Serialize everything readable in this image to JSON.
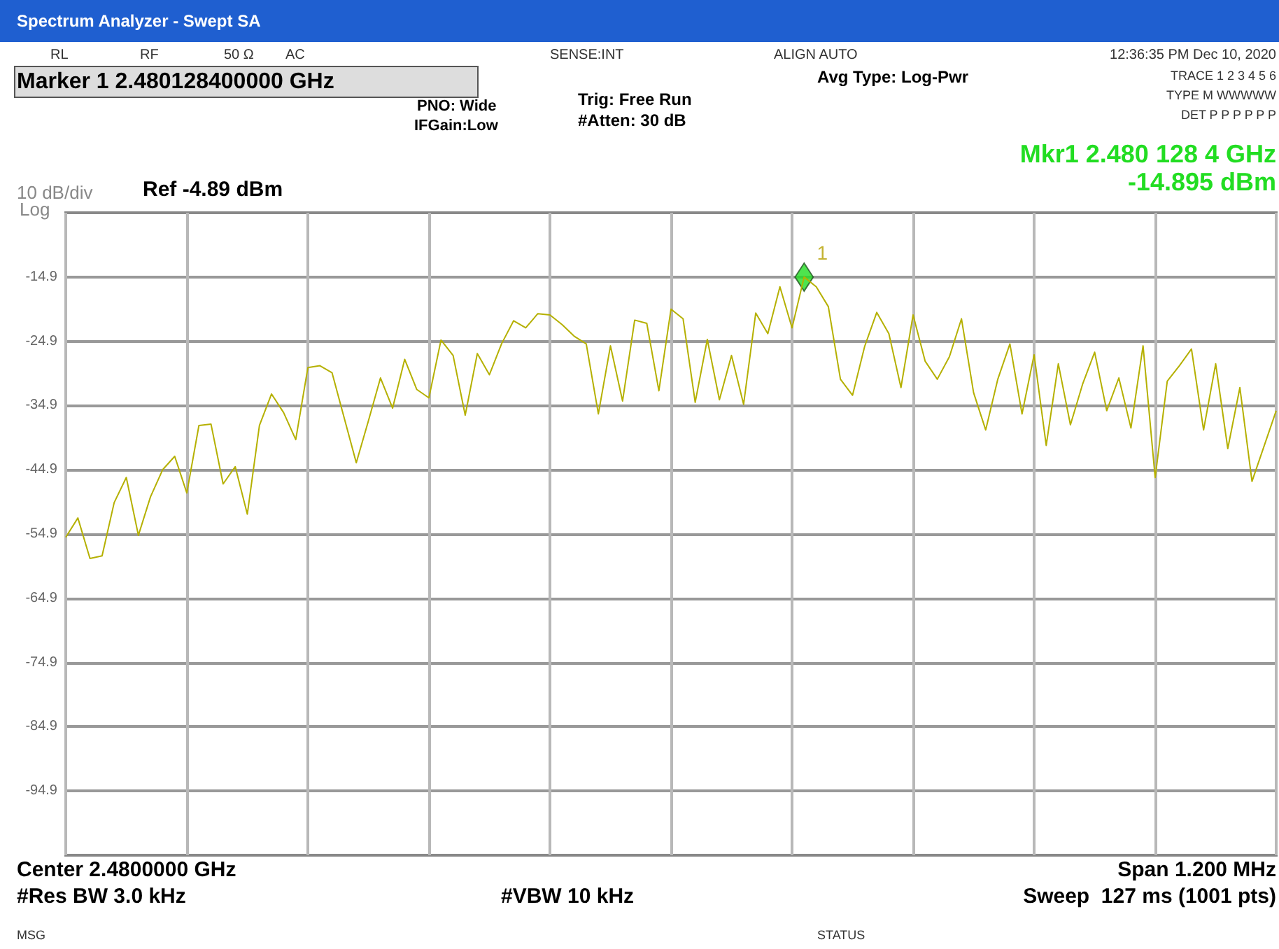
{
  "chart_data": {
    "type": "line",
    "title": "Spectrum Analyzer - Swept SA",
    "categories": [
      null,
      null,
      null,
      null,
      null,
      null,
      null,
      null,
      null,
      null,
      null,
      null,
      null,
      null,
      null,
      null,
      null,
      null,
      null,
      null,
      null,
      null,
      null,
      null,
      null,
      null,
      null,
      null,
      null,
      null,
      null,
      null,
      null,
      null,
      null,
      null,
      null,
      null,
      null,
      null,
      null,
      null,
      null,
      null,
      null,
      null,
      null,
      null,
      null,
      null,
      null,
      null,
      null,
      null,
      null,
      null,
      null,
      null,
      null,
      null,
      null,
      null,
      null,
      null,
      null,
      null,
      null,
      null,
      null,
      null,
      null,
      null,
      null,
      null,
      null,
      null,
      null,
      null,
      null,
      null,
      null,
      null,
      null,
      null,
      null,
      null,
      null,
      null,
      null,
      null,
      null,
      null,
      null,
      null,
      null,
      null,
      null,
      null,
      null,
      null,
      null
    ],
    "series": [
      {
        "color": "#b5b000",
        "values": [
          -55.4,
          -52.4,
          -58.7,
          -58.3,
          -50.0,
          -46.1,
          -55.1,
          -49.1,
          -44.9,
          -42.8,
          -48.5,
          -38.0,
          -37.8,
          -47.1,
          -44.4,
          -51.8,
          -38.0,
          -33.1,
          -36.0,
          -40.2,
          -29.0,
          -28.7,
          -29.8,
          -36.8,
          -43.8,
          -37.3,
          -30.6,
          -35.3,
          -27.7,
          -32.4,
          -33.7,
          -24.7,
          -27.1,
          -36.4,
          -26.8,
          -30.1,
          -25.3,
          -21.7,
          -22.8,
          -20.6,
          -20.8,
          -22.3,
          -24.1,
          -25.3,
          -36.2,
          -25.6,
          -34.2,
          -21.6,
          -22.1,
          -32.6,
          -19.9,
          -21.4,
          -34.4,
          -24.6,
          -34.0,
          -27.1,
          -34.7,
          -20.5,
          -23.7,
          -16.4,
          -22.8,
          -14.9,
          -16.4,
          -19.5,
          -30.8,
          -33.3,
          -25.7,
          -20.4,
          -23.7,
          -32.1,
          -20.8,
          -28.0,
          -30.8,
          -27.3,
          -21.4,
          -32.9,
          -38.7,
          -30.8,
          -25.3,
          -36.2,
          -27.0,
          -41.1,
          -28.4,
          -37.9,
          -31.6,
          -26.6,
          -35.7,
          -30.6,
          -38.4,
          -25.6,
          -46.1,
          -31.1,
          -28.7,
          -26.1,
          -38.7,
          -28.4,
          -41.6,
          -32.1,
          -46.7,
          -41.2,
          -35.7
        ]
      },
      {
        "type": "scatter",
        "name": "1",
        "color": "#22dd22",
        "marker": "diamond",
        "values": [
          null,
          null,
          null,
          null,
          null,
          null,
          null,
          null,
          null,
          null,
          null,
          null,
          null,
          null,
          null,
          null,
          null,
          null,
          null,
          null,
          null,
          null,
          null,
          null,
          null,
          null,
          null,
          null,
          null,
          null,
          null,
          null,
          null,
          null,
          null,
          null,
          null,
          null,
          null,
          null,
          null,
          null,
          null,
          null,
          null,
          null,
          null,
          null,
          null,
          null,
          null,
          null,
          null,
          null,
          null,
          null,
          null,
          null,
          null,
          null,
          null,
          -14.9,
          null,
          null,
          null,
          null,
          null,
          null,
          null,
          null,
          null,
          null,
          null,
          null,
          null,
          null,
          null,
          null,
          null,
          null,
          null,
          null,
          null,
          null,
          null,
          null,
          null,
          null,
          null,
          null,
          null,
          null,
          null,
          null,
          null,
          null,
          null,
          null,
          null,
          null,
          null
        ]
      }
    ],
    "ylim": [
      -104.89,
      -4.89
    ],
    "yticks": [
      -14.9,
      -24.9,
      -34.9,
      -44.9,
      -54.9,
      -64.9,
      -74.9,
      -84.9,
      -94.9
    ],
    "tick_labels": "y",
    "grid": true,
    "line_style": "solid",
    "annotations": [
      "RL",
      "RF",
      "50 Ω",
      "AC",
      "SENSE:INT",
      "ALIGN AUTO",
      "12:36:35 PM Dec 10, 2020",
      "Marker 1 2.480128400000 GHz",
      "PNO: Wide",
      "IFGain:Low",
      "Trig: Free Run",
      "#Atten: 30 dB",
      "Avg Type: Log-Pwr",
      "TRACE 1 2 3 4 5 6",
      "TYPE M WWWWW",
      "DET P P P P P P",
      "Mkr1 2.480 128 4 GHz",
      "-14.895 dBm",
      "10 dB/div",
      "Ref -4.89 dBm",
      "Log",
      "Center 2.4800000 GHz",
      "Span 1.200 MHz",
      "#Res BW 3.0 kHz",
      "#VBW 10 kHz",
      "Sweep  127 ms (1001 pts)",
      "MSG",
      "STATUS"
    ]
  }
}
